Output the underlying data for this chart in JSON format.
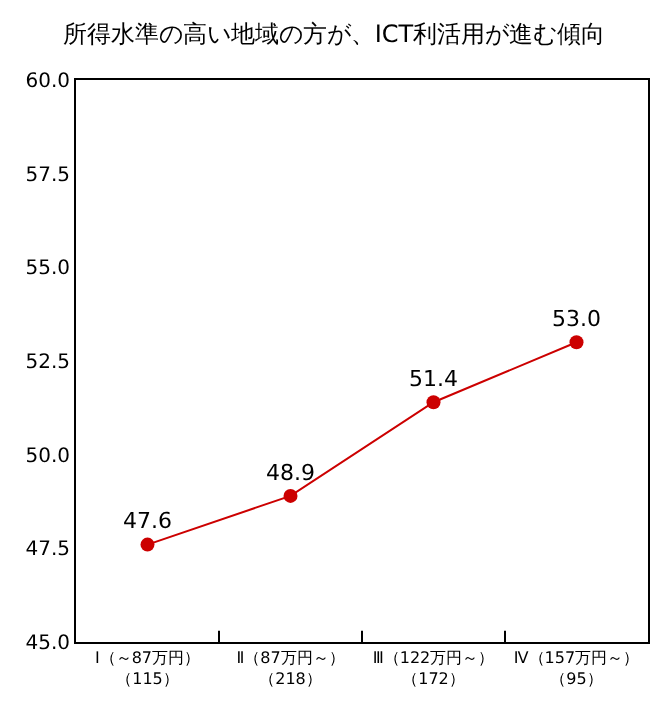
{
  "chart_data": {
    "type": "line",
    "title": "所得水準の高い地域の方が、ICT利活用が進む傾向",
    "categories": [
      "Ⅰ（～87万円）（115）",
      "Ⅱ（87万円～）（218）",
      "Ⅲ（122万円～）（172）",
      "Ⅳ（157万円～）（95）"
    ],
    "series": [
      {
        "color": "#cc0000",
        "values": [
          47.6,
          48.9,
          51.4,
          53.0
        ],
        "value_labels": [
          "47.6",
          "48.9",
          "51.4",
          "53.0"
        ]
      }
    ],
    "ylim": [
      45,
      60
    ],
    "yticks": [
      {
        "value": 45,
        "label": "45.0"
      },
      {
        "value": 47.5,
        "label": "47.5"
      },
      {
        "value": 50,
        "label": "50.0"
      },
      {
        "value": 52.5,
        "label": "52.5"
      },
      {
        "value": 55,
        "label": "55.0"
      },
      {
        "value": 57.5,
        "label": "57.5"
      },
      {
        "value": 60,
        "label": "60.0"
      }
    ],
    "marker": "circle",
    "line_style": "solid"
  }
}
